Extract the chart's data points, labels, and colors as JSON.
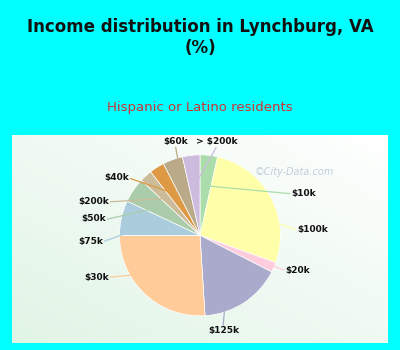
{
  "title": "Income distribution in Lynchburg, VA\n(%)",
  "subtitle": "Hispanic or Latino residents",
  "watermark": "©City-Data.com",
  "labels": [
    "$10k",
    "$100k",
    "$20k",
    "$125k",
    "$30k",
    "$75k",
    "$50k",
    "$200k",
    "$40k",
    "$60k",
    "> $200k"
  ],
  "values": [
    3.5,
    27.0,
    2.0,
    16.5,
    26.0,
    7.0,
    5.0,
    2.5,
    3.0,
    4.0,
    3.5
  ],
  "pie_colors": [
    "#aaddaa",
    "#ffffaa",
    "#ffccdd",
    "#aaaacc",
    "#ffcc99",
    "#aaccdd",
    "#aaccaa",
    "#ccbb99",
    "#dd9944",
    "#bbaa88",
    "#ccbbdd"
  ],
  "bg_cyan": "#00ffff",
  "chart_bg_top": "#e0f5f0",
  "chart_bg_bottom": "#c8e8d0",
  "title_color": "#111111",
  "subtitle_color": "#cc3333",
  "label_color": "#111111",
  "watermark_color": "#aabbcc"
}
